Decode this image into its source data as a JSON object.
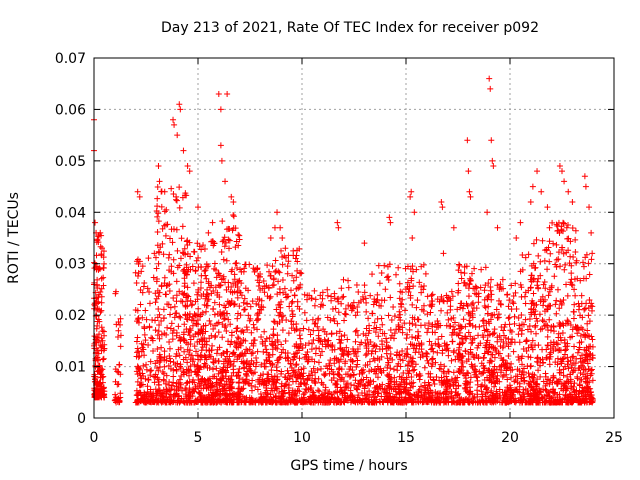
{
  "chart_data": {
    "type": "scatter",
    "title": "Day 213 of 2021, Rate Of TEC Index for receiver p092",
    "xlabel": "GPS time / hours",
    "ylabel": "ROTI / TECUs",
    "xlim": [
      0,
      25
    ],
    "ylim": [
      0,
      0.07
    ],
    "grid": true,
    "marker": "plus",
    "series_color": "#ff0000",
    "x_ticks": [
      {
        "v": 0,
        "label": "0"
      },
      {
        "v": 5,
        "label": "5"
      },
      {
        "v": 10,
        "label": "10"
      },
      {
        "v": 15,
        "label": "15"
      },
      {
        "v": 20,
        "label": "20"
      },
      {
        "v": 25,
        "label": "25"
      }
    ],
    "y_ticks": [
      {
        "v": 0,
        "label": "0"
      },
      {
        "v": 0.01,
        "label": "0.01"
      },
      {
        "v": 0.02,
        "label": "0.02"
      },
      {
        "v": 0.03,
        "label": "0.03"
      },
      {
        "v": 0.04,
        "label": "0.04"
      },
      {
        "v": 0.05,
        "label": "0.05"
      },
      {
        "v": 0.06,
        "label": "0.06"
      },
      {
        "v": 0.07,
        "label": "0.07"
      }
    ],
    "bands": [
      {
        "x0": 0.0,
        "x1": 0.5,
        "base": 0.004,
        "peak": 0.037,
        "n": 220
      },
      {
        "x0": 1.0,
        "x1": 1.3,
        "base": 0.003,
        "peak": 0.028,
        "n": 35
      },
      {
        "x0": 2.0,
        "x1": 3.0,
        "base": 0.003,
        "peak": 0.034,
        "n": 170
      },
      {
        "x0": 3.0,
        "x1": 4.5,
        "base": 0.003,
        "peak": 0.045,
        "n": 320
      },
      {
        "x0": 4.5,
        "x1": 6.0,
        "base": 0.003,
        "peak": 0.035,
        "n": 360
      },
      {
        "x0": 6.0,
        "x1": 7.0,
        "base": 0.003,
        "peak": 0.04,
        "n": 260
      },
      {
        "x0": 7.0,
        "x1": 8.5,
        "base": 0.003,
        "peak": 0.03,
        "n": 260
      },
      {
        "x0": 8.5,
        "x1": 10.0,
        "base": 0.003,
        "peak": 0.033,
        "n": 300
      },
      {
        "x0": 10.0,
        "x1": 11.5,
        "base": 0.003,
        "peak": 0.025,
        "n": 220
      },
      {
        "x0": 11.5,
        "x1": 13.0,
        "base": 0.003,
        "peak": 0.027,
        "n": 220
      },
      {
        "x0": 13.0,
        "x1": 14.5,
        "base": 0.003,
        "peak": 0.03,
        "n": 240
      },
      {
        "x0": 14.5,
        "x1": 16.0,
        "base": 0.003,
        "peak": 0.03,
        "n": 250
      },
      {
        "x0": 16.0,
        "x1": 17.5,
        "base": 0.003,
        "peak": 0.025,
        "n": 230
      },
      {
        "x0": 17.5,
        "x1": 19.0,
        "base": 0.003,
        "peak": 0.03,
        "n": 280
      },
      {
        "x0": 19.0,
        "x1": 20.5,
        "base": 0.003,
        "peak": 0.027,
        "n": 250
      },
      {
        "x0": 20.5,
        "x1": 22.0,
        "base": 0.003,
        "peak": 0.035,
        "n": 300
      },
      {
        "x0": 22.0,
        "x1": 23.2,
        "base": 0.003,
        "peak": 0.038,
        "n": 260
      },
      {
        "x0": 23.2,
        "x1": 24.0,
        "base": 0.003,
        "peak": 0.032,
        "n": 180
      }
    ],
    "outliers": [
      [
        0.0,
        0.058
      ],
      [
        0.0,
        0.052
      ],
      [
        0.05,
        0.038
      ],
      [
        0.1,
        0.036
      ],
      [
        0.3,
        0.036
      ],
      [
        2.1,
        0.044
      ],
      [
        2.2,
        0.043
      ],
      [
        2.9,
        0.032
      ],
      [
        3.1,
        0.049
      ],
      [
        3.15,
        0.046
      ],
      [
        3.4,
        0.044
      ],
      [
        3.8,
        0.058
      ],
      [
        3.85,
        0.057
      ],
      [
        4.0,
        0.055
      ],
      [
        4.1,
        0.061
      ],
      [
        4.15,
        0.06
      ],
      [
        4.3,
        0.052
      ],
      [
        4.5,
        0.049
      ],
      [
        4.6,
        0.048
      ],
      [
        5.0,
        0.041
      ],
      [
        5.5,
        0.036
      ],
      [
        5.7,
        0.038
      ],
      [
        6.0,
        0.063
      ],
      [
        6.1,
        0.06
      ],
      [
        6.1,
        0.053
      ],
      [
        6.15,
        0.05
      ],
      [
        6.3,
        0.046
      ],
      [
        6.4,
        0.063
      ],
      [
        6.6,
        0.043
      ],
      [
        6.7,
        0.042
      ],
      [
        8.5,
        0.035
      ],
      [
        8.7,
        0.037
      ],
      [
        8.8,
        0.04
      ],
      [
        8.95,
        0.037
      ],
      [
        9.05,
        0.035
      ],
      [
        9.2,
        0.033
      ],
      [
        11.7,
        0.038
      ],
      [
        11.75,
        0.037
      ],
      [
        13.0,
        0.034
      ],
      [
        14.2,
        0.039
      ],
      [
        14.25,
        0.038
      ],
      [
        15.2,
        0.043
      ],
      [
        15.25,
        0.044
      ],
      [
        15.4,
        0.04
      ],
      [
        15.3,
        0.035
      ],
      [
        16.7,
        0.042
      ],
      [
        16.75,
        0.041
      ],
      [
        16.8,
        0.032
      ],
      [
        17.3,
        0.037
      ],
      [
        17.95,
        0.054
      ],
      [
        18.0,
        0.048
      ],
      [
        18.05,
        0.044
      ],
      [
        18.1,
        0.043
      ],
      [
        18.9,
        0.04
      ],
      [
        19.0,
        0.066
      ],
      [
        19.05,
        0.064
      ],
      [
        19.1,
        0.054
      ],
      [
        19.15,
        0.05
      ],
      [
        19.2,
        0.049
      ],
      [
        19.4,
        0.037
      ],
      [
        20.3,
        0.035
      ],
      [
        20.5,
        0.038
      ],
      [
        21.0,
        0.042
      ],
      [
        21.1,
        0.045
      ],
      [
        21.3,
        0.048
      ],
      [
        21.5,
        0.044
      ],
      [
        21.8,
        0.041
      ],
      [
        21.9,
        0.037
      ],
      [
        22.4,
        0.049
      ],
      [
        22.5,
        0.048
      ],
      [
        22.6,
        0.046
      ],
      [
        22.8,
        0.044
      ],
      [
        23.0,
        0.042
      ],
      [
        23.6,
        0.047
      ],
      [
        23.65,
        0.045
      ],
      [
        23.8,
        0.041
      ],
      [
        23.9,
        0.036
      ],
      [
        23.95,
        0.032
      ]
    ]
  }
}
